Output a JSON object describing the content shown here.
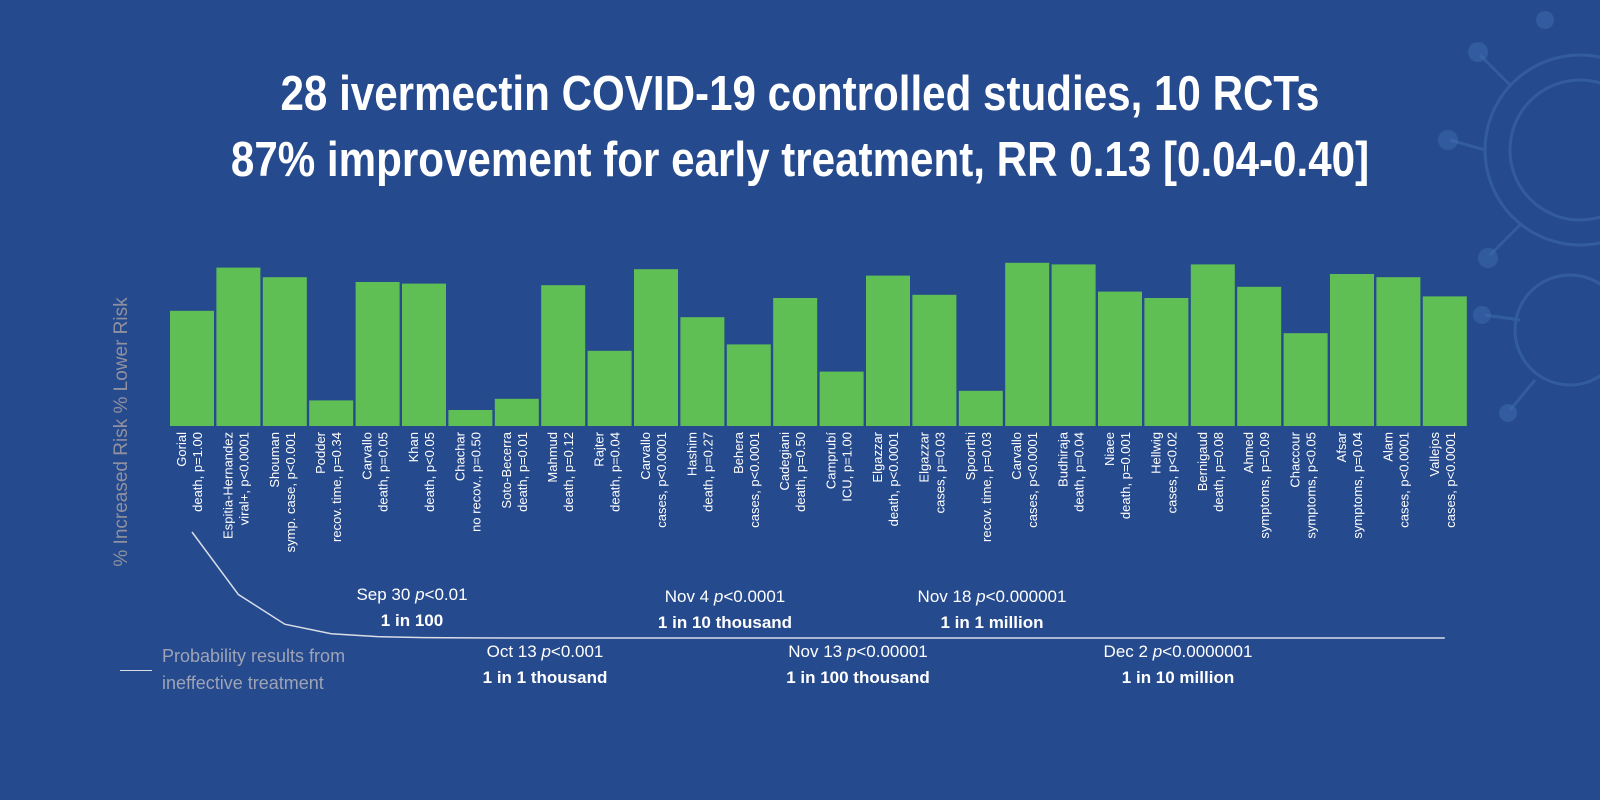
{
  "title": {
    "line1": "28 ivermectin COVID-19 controlled studies, 10 RCTs",
    "line2": "87% improvement for early treatment, RR 0.13 [0.04-0.40]"
  },
  "colors": {
    "background": "#264a8e",
    "bar": "#5fbf55",
    "text": "#ffffff",
    "muted": "#9ea3b5",
    "curve": "#d8dde8"
  },
  "chart_data": {
    "type": "bar",
    "ylabel": "% Increased Risk % Lower Risk",
    "categories": [
      {
        "study": "Gorial",
        "detail": "death, p=1.00"
      },
      {
        "study": "Espitia-Hernandez",
        "detail": "viral+, p<0.0001"
      },
      {
        "study": "Shouman",
        "detail": "symp. case, p<0.001"
      },
      {
        "study": "Podder",
        "detail": "recov. time, p=0.34"
      },
      {
        "study": "Carvallo",
        "detail": "death, p=0.05"
      },
      {
        "study": "Khan",
        "detail": "death, p<0.05"
      },
      {
        "study": "Chachar",
        "detail": "no recov., p=0.50"
      },
      {
        "study": "Soto-Becerra",
        "detail": "death, p=0.01"
      },
      {
        "study": "Mahmud",
        "detail": "death, p=0.12"
      },
      {
        "study": "Rajter",
        "detail": "death, p=0.04"
      },
      {
        "study": "Carvallo",
        "detail": "cases, p<0.0001"
      },
      {
        "study": "Hashim",
        "detail": "death, p=0.27"
      },
      {
        "study": "Behera",
        "detail": "cases, p<0.0001"
      },
      {
        "study": "Cadegiani",
        "detail": "death, p=0.50"
      },
      {
        "study": "Camprubí",
        "detail": "ICU, p=1.00"
      },
      {
        "study": "Elgazzar",
        "detail": "death, p<0.0001"
      },
      {
        "study": "Elgazzar",
        "detail": "cases, p=0.03"
      },
      {
        "study": "Spoorthi",
        "detail": "recov. time, p=0.03"
      },
      {
        "study": "Carvallo",
        "detail": "cases, p<0.0001"
      },
      {
        "study": "Budhiraja",
        "detail": "death, p=0.04"
      },
      {
        "study": "Niaee",
        "detail": "death, p=0.001"
      },
      {
        "study": "Hellwig",
        "detail": "cases, p<0.02"
      },
      {
        "study": "Bernigaud",
        "detail": "death, p=0.08"
      },
      {
        "study": "Ahmed",
        "detail": "symptoms, p=0.09"
      },
      {
        "study": "Chaccour",
        "detail": "symptoms, p<0.05"
      },
      {
        "study": "Afsar",
        "detail": "symptoms, p=0.04"
      },
      {
        "study": "Alam",
        "detail": "cases, p<0.0001"
      },
      {
        "study": "Vallejos",
        "detail": "cases, p<0.0001"
      }
    ],
    "values": [
      72,
      99,
      93,
      16,
      90,
      89,
      10,
      17,
      88,
      47,
      98,
      68,
      51,
      80,
      34,
      94,
      82,
      22,
      102,
      101,
      84,
      80,
      101,
      87,
      58,
      95,
      93,
      81
    ],
    "curve": [
      {
        "x": 1,
        "y": 1.0
      },
      {
        "x": 2,
        "y": 0.41
      },
      {
        "x": 3,
        "y": 0.13
      },
      {
        "x": 4,
        "y": 0.04
      },
      {
        "x": 5,
        "y": 0.013
      },
      {
        "x": 6,
        "y": 0.004
      },
      {
        "x": 7,
        "y": 0.0013
      },
      {
        "x": 8,
        "y": 0.0004
      },
      {
        "x": 28,
        "y": 0.0
      }
    ],
    "milestones": [
      {
        "date": "Sep 30",
        "p": "<0.01",
        "odds": "1 in 100"
      },
      {
        "date": "Oct 13",
        "p": "<0.001",
        "odds": "1 in 1 thousand"
      },
      {
        "date": "Nov 4",
        "p": "<0.0001",
        "odds": "1 in 10 thousand"
      },
      {
        "date": "Nov 13",
        "p": "<0.00001",
        "odds": "1 in 100 thousand"
      },
      {
        "date": "Nov 18",
        "p": "<0.000001",
        "odds": "1 in 1 million"
      },
      {
        "date": "Dec 2",
        "p": "<0.0000001",
        "odds": "1 in 10 million"
      }
    ],
    "legend": "Probability results from ineffective treatment"
  }
}
